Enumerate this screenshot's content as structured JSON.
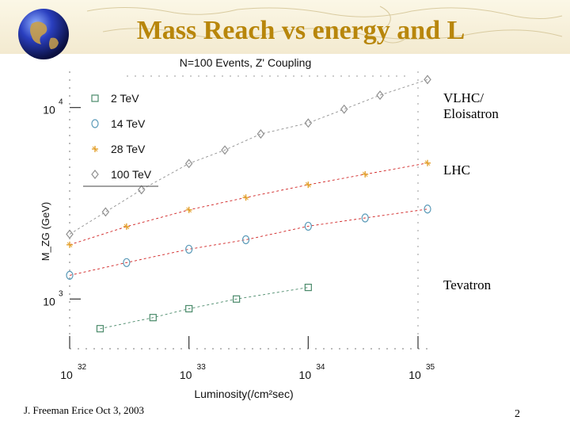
{
  "slide": {
    "title": "Mass Reach vs energy and L",
    "footer": "J. Freeman   Erice  Oct 3, 2003",
    "page_number": "2"
  },
  "annotations": {
    "vlhc": "VLHC/",
    "vlhc2": "Eloisatron",
    "lhc": "LHC",
    "tevatron": "Tevatron"
  },
  "colors": {
    "title": "#b8860b",
    "s2": "#4a8a6a",
    "s14": "#5a9ab8",
    "s28": "#e3a12f",
    "s100": "#909090",
    "fit_red": "#d02020"
  },
  "chart_data": {
    "type": "scatter",
    "title": "N=100 Events, Z' Coupling",
    "xlabel": "Luminosity(/cm²sec)",
    "ylabel": "M_ZG (GeV)",
    "x_scale": "log",
    "y_scale": "log",
    "xlim": [
      1e+32,
      1e+35
    ],
    "ylim": [
      550,
      17000
    ],
    "x_ticks": [
      "10^32",
      "10^33",
      "10^34",
      "10^35"
    ],
    "y_ticks": [
      "10^3",
      "10^4"
    ],
    "series": [
      {
        "name": "2 TeV",
        "marker": "square",
        "x": [
          1.8e+32,
          5e+32,
          1e+33,
          2.5e+33,
          1e+34
        ],
        "y": [
          700,
          800,
          890,
          1000,
          1150
        ]
      },
      {
        "name": "14 TeV",
        "marker": "circle",
        "x": [
          1e+32,
          3e+32,
          1e+33,
          3e+33,
          1e+34,
          3e+34,
          1e+35
        ],
        "y": [
          1330,
          1550,
          1820,
          2040,
          2400,
          2650,
          2950
        ]
      },
      {
        "name": "28 TeV",
        "marker": "star",
        "x": [
          1e+32,
          3e+32,
          1e+33,
          3e+33,
          1e+34,
          3e+34,
          1e+35
        ],
        "y": [
          1920,
          2390,
          2920,
          3390,
          3950,
          4480,
          5130
        ]
      },
      {
        "name": "100 TeV",
        "marker": "diamond",
        "x": [
          1e+32,
          2e+32,
          4e+32,
          1e+33,
          2e+33,
          4e+33,
          1e+34,
          2e+34,
          4e+34,
          1e+35
        ],
        "y": [
          2180,
          2850,
          3720,
          5100,
          6000,
          7280,
          8300,
          9800,
          11600,
          14000
        ]
      }
    ],
    "fit_lines": "dashed fit line through each series",
    "legend_position": "top-left"
  }
}
